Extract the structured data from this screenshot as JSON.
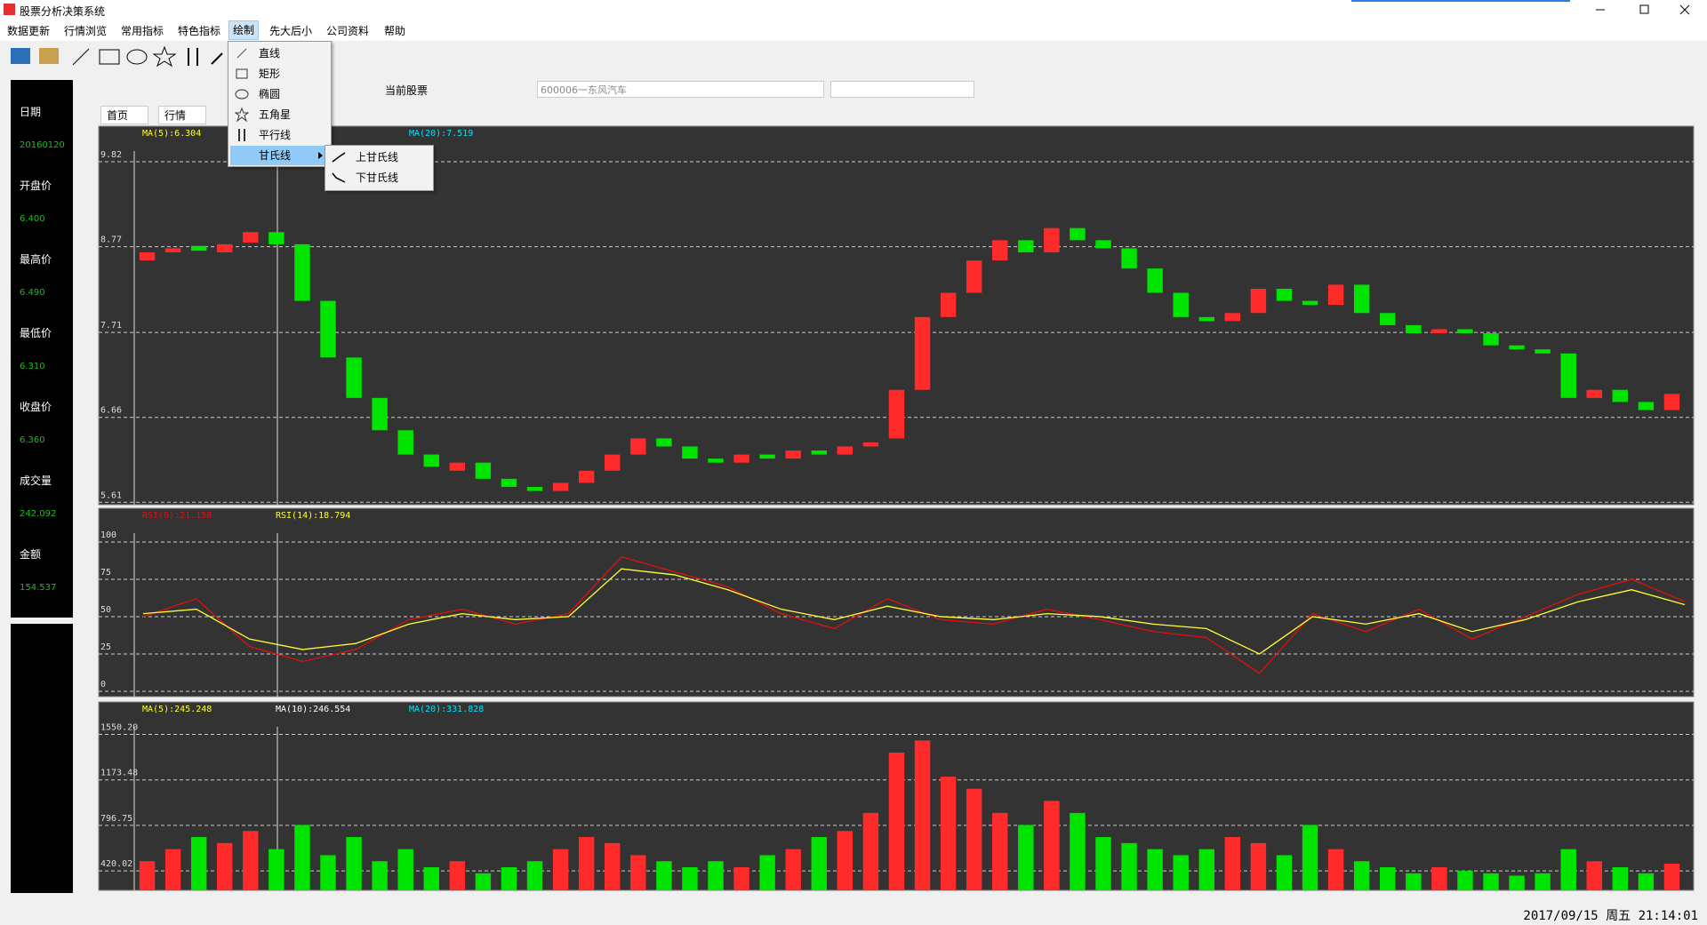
{
  "window": {
    "title": "股票分析决策系统"
  },
  "menu": [
    "数据更新",
    "行情浏览",
    "常用指标",
    "特色指标",
    "绘制",
    "先大后小",
    "公司资料",
    "帮助"
  ],
  "draw_menu": [
    "直线",
    "矩形",
    "椭圆",
    "五角星",
    "平行线",
    "甘氏线"
  ],
  "gann_submenu": [
    "上甘氏线",
    "下甘氏线"
  ],
  "info_panel": [
    {
      "label": "日期",
      "value": "20160120"
    },
    {
      "label": "开盘价",
      "value": "6.400"
    },
    {
      "label": "最高价",
      "value": "6.490"
    },
    {
      "label": "最低价",
      "value": "6.310"
    },
    {
      "label": "收盘价",
      "value": "6.360"
    },
    {
      "label": "成交量",
      "value": "242.092"
    },
    {
      "label": "金额",
      "value": "154.537"
    }
  ],
  "tabs": [
    "首页",
    "行情"
  ],
  "stock": {
    "label": "当前股票",
    "code": "600006一东风汽车"
  },
  "status": {
    "time": "2017/09/15 周五 21:14:01"
  },
  "chart_data": [
    {
      "type": "candlestick",
      "indicators": [
        {
          "label": "MA(5):6.304",
          "color": "#ffff33"
        },
        {
          "label": "MA(20):7.519",
          "color": "#00e5ff"
        }
      ],
      "open": [
        8.6,
        8.7,
        8.78,
        8.7,
        8.82,
        8.95,
        8.8,
        8.1,
        7.4,
        6.9,
        6.5,
        6.2,
        6.0,
        6.1,
        5.9,
        5.8,
        5.75,
        5.85,
        6.0,
        6.2,
        6.4,
        6.3,
        6.15,
        6.1,
        6.2,
        6.15,
        6.25,
        6.2,
        6.3,
        6.4,
        7.0,
        7.9,
        8.2,
        8.6,
        8.85,
        8.7,
        9.0,
        8.85,
        8.75,
        8.5,
        8.2,
        7.9,
        7.85,
        7.95,
        8.25,
        8.1,
        8.05,
        8.3,
        7.95,
        7.8,
        7.7,
        7.75,
        7.7,
        7.55,
        7.5,
        7.45,
        6.9,
        7.0,
        6.85,
        6.75
      ],
      "close": [
        8.7,
        8.75,
        8.72,
        8.8,
        8.95,
        8.8,
        8.1,
        7.4,
        6.9,
        6.5,
        6.2,
        6.05,
        6.1,
        5.9,
        5.8,
        5.75,
        5.85,
        6.0,
        6.2,
        6.4,
        6.3,
        6.15,
        6.1,
        6.2,
        6.15,
        6.25,
        6.2,
        6.3,
        6.35,
        7.0,
        7.9,
        8.2,
        8.6,
        8.85,
        8.7,
        9.0,
        8.85,
        8.75,
        8.5,
        8.2,
        7.9,
        7.85,
        7.95,
        8.25,
        8.1,
        8.05,
        8.3,
        7.95,
        7.8,
        7.7,
        7.75,
        7.7,
        7.55,
        7.5,
        7.45,
        6.9,
        7.0,
        6.85,
        6.75,
        6.95
      ],
      "up_color": "#ff2a2a",
      "down_color": "#00e400",
      "ylim": [
        5.58,
        10.26
      ],
      "yticks": [
        5.61,
        6.66,
        7.71,
        8.77,
        9.82
      ],
      "grid": true
    },
    {
      "type": "line",
      "series": [
        {
          "name": "RSI(6):21.158",
          "color": "#e01010",
          "values": [
            50,
            62,
            30,
            20,
            28,
            48,
            55,
            45,
            52,
            90,
            80,
            70,
            52,
            42,
            62,
            48,
            45,
            55,
            48,
            40,
            36,
            12,
            52,
            40,
            55,
            35,
            50,
            65,
            75,
            60
          ]
        },
        {
          "name": "RSI(14):18.794",
          "color": "#ffff33",
          "values": [
            52,
            55,
            35,
            28,
            32,
            45,
            52,
            48,
            50,
            82,
            78,
            68,
            55,
            48,
            57,
            50,
            48,
            52,
            50,
            45,
            42,
            25,
            50,
            45,
            52,
            40,
            48,
            60,
            68,
            58
          ]
        }
      ],
      "ylim": [
        -3.6,
        122.6
      ],
      "yticks": [
        0,
        25,
        50,
        75,
        100
      ],
      "grid": true
    },
    {
      "type": "bar",
      "indicators": [
        {
          "label": "MA(5):245.248",
          "color": "#ffff33"
        },
        {
          "label": "MA(10):246.554",
          "color": "#ffffff"
        },
        {
          "label": "MA(20):331.828",
          "color": "#00e5ff"
        }
      ],
      "values": [
        500,
        600,
        700,
        650,
        750,
        600,
        800,
        550,
        700,
        500,
        600,
        450,
        500,
        400,
        450,
        500,
        600,
        700,
        650,
        550,
        500,
        450,
        500,
        450,
        550,
        600,
        700,
        750,
        900,
        1400,
        1500,
        1200,
        1100,
        900,
        800,
        1000,
        900,
        700,
        650,
        600,
        550,
        600,
        700,
        650,
        550,
        800,
        600,
        500,
        450,
        400,
        450,
        420,
        400,
        380,
        400,
        600,
        500,
        450,
        400,
        480
      ],
      "ylim": [
        258.6,
        1819
      ],
      "yticks": [
        420.02,
        796.75,
        1173.48,
        {
          "value": 1550.2,
          "label": "1550.20"
        }
      ],
      "grid": true
    }
  ]
}
